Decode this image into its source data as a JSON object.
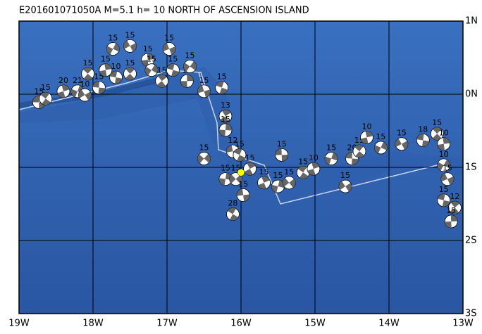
{
  "title": "E201601071050A  M=5.1  h= 10  NORTH OF ASCENSION ISLAND",
  "xlim": [
    -19,
    -13
  ],
  "ylim": [
    -3,
    1
  ],
  "xticks": [
    {
      "value": -19,
      "label": "19W"
    },
    {
      "value": -18,
      "label": "18W"
    },
    {
      "value": -17,
      "label": "17W"
    },
    {
      "value": -16,
      "label": "16W"
    },
    {
      "value": -15,
      "label": "15W"
    },
    {
      "value": -14,
      "label": "14W"
    },
    {
      "value": -13,
      "label": "13W"
    }
  ],
  "yticks": [
    {
      "value": 1,
      "label": "1N"
    },
    {
      "value": 0,
      "label": "0N"
    },
    {
      "value": -1,
      "label": "1S"
    },
    {
      "value": -2,
      "label": "2S"
    },
    {
      "value": -3,
      "label": "3S"
    }
  ],
  "main_event": {
    "lon": -16.0,
    "lat": -1.07,
    "color": "#ffff00"
  },
  "events": [
    {
      "lon": -18.73,
      "lat": -0.11,
      "depth": 15
    },
    {
      "lon": -18.64,
      "lat": -0.06,
      "depth": 15
    },
    {
      "lon": -18.4,
      "lat": 0.04,
      "depth": 20
    },
    {
      "lon": -18.21,
      "lat": 0.04,
      "depth": 21
    },
    {
      "lon": -18.11,
      "lat": -0.01,
      "depth": 10
    },
    {
      "lon": -17.92,
      "lat": 0.09,
      "depth": 15
    },
    {
      "lon": -18.07,
      "lat": 0.28,
      "depth": 15
    },
    {
      "lon": -17.83,
      "lat": 0.33,
      "depth": 15
    },
    {
      "lon": -17.73,
      "lat": 0.62,
      "depth": 15
    },
    {
      "lon": -17.5,
      "lat": 0.66,
      "depth": 15
    },
    {
      "lon": -17.69,
      "lat": 0.23,
      "depth": 10
    },
    {
      "lon": -17.5,
      "lat": 0.28,
      "depth": 15
    },
    {
      "lon": -17.26,
      "lat": 0.47,
      "depth": 15
    },
    {
      "lon": -17.21,
      "lat": 0.33,
      "depth": 15
    },
    {
      "lon": -16.97,
      "lat": 0.62,
      "depth": 15
    },
    {
      "lon": -16.92,
      "lat": 0.33,
      "depth": 15
    },
    {
      "lon": -17.07,
      "lat": 0.18,
      "depth": 15
    },
    {
      "lon": -16.73,
      "lat": 0.18,
      "depth": 15
    },
    {
      "lon": -16.69,
      "lat": 0.38,
      "depth": 15
    },
    {
      "lon": -16.5,
      "lat": 0.04,
      "depth": 15
    },
    {
      "lon": -16.26,
      "lat": 0.09,
      "depth": 15
    },
    {
      "lon": -16.21,
      "lat": -0.3,
      "depth": 13
    },
    {
      "lon": -16.21,
      "lat": -0.49,
      "depth": 15
    },
    {
      "lon": -16.5,
      "lat": -0.88,
      "depth": 15
    },
    {
      "lon": -16.11,
      "lat": -0.78,
      "depth": 12
    },
    {
      "lon": -16.02,
      "lat": -0.83,
      "depth": 15
    },
    {
      "lon": -15.88,
      "lat": -1.02,
      "depth": 15
    },
    {
      "lon": -16.21,
      "lat": -1.16,
      "depth": 15
    },
    {
      "lon": -16.07,
      "lat": -1.16,
      "depth": 15
    },
    {
      "lon": -15.97,
      "lat": -1.38,
      "depth": 15
    },
    {
      "lon": -16.11,
      "lat": -1.64,
      "depth": 28
    },
    {
      "lon": -15.69,
      "lat": -1.21,
      "depth": 15
    },
    {
      "lon": -15.5,
      "lat": -1.26,
      "depth": 15
    },
    {
      "lon": -15.35,
      "lat": -1.21,
      "depth": 15
    },
    {
      "lon": -15.45,
      "lat": -0.83,
      "depth": 15
    },
    {
      "lon": -15.16,
      "lat": -1.07,
      "depth": 15
    },
    {
      "lon": -15.02,
      "lat": -1.02,
      "depth": 10
    },
    {
      "lon": -14.78,
      "lat": -0.88,
      "depth": 15
    },
    {
      "lon": -14.59,
      "lat": -1.26,
      "depth": 15
    },
    {
      "lon": -14.5,
      "lat": -0.88,
      "depth": 20
    },
    {
      "lon": -14.4,
      "lat": -0.78,
      "depth": 15
    },
    {
      "lon": -14.3,
      "lat": -0.59,
      "depth": 10
    },
    {
      "lon": -14.11,
      "lat": -0.73,
      "depth": 15
    },
    {
      "lon": -13.83,
      "lat": -0.68,
      "depth": 15
    },
    {
      "lon": -13.54,
      "lat": -0.63,
      "depth": 18
    },
    {
      "lon": -13.35,
      "lat": -0.54,
      "depth": 15
    },
    {
      "lon": -13.26,
      "lat": -0.68,
      "depth": 10
    },
    {
      "lon": -13.26,
      "lat": -0.97,
      "depth": 10
    },
    {
      "lon": -13.21,
      "lat": -1.16,
      "depth": 15
    },
    {
      "lon": -13.26,
      "lat": -1.45,
      "depth": 15
    },
    {
      "lon": -13.11,
      "lat": -1.55,
      "depth": 12
    },
    {
      "lon": -13.16,
      "lat": -1.74,
      "depth": 15
    }
  ]
}
